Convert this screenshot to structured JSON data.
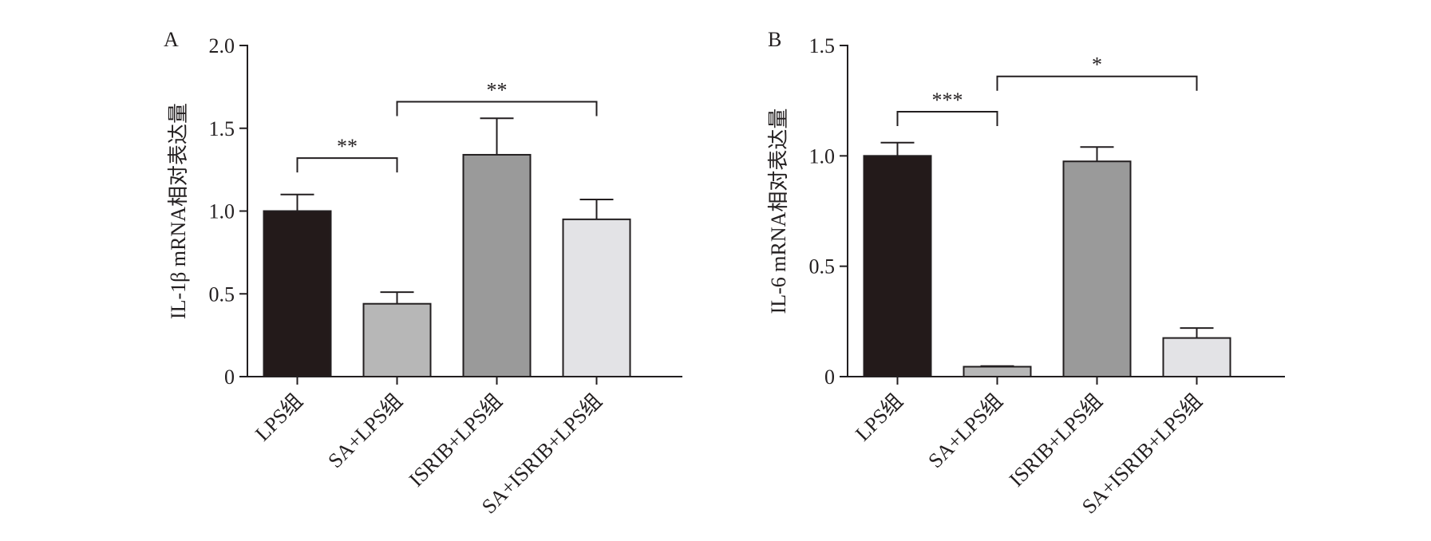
{
  "chart_data": [
    {
      "type": "bar",
      "panel_label": "A",
      "categories": [
        "LPS组",
        "SA+LPS组",
        "ISRIB+LPS组",
        "SA+ISRIB+LPS组"
      ],
      "values": [
        1.0,
        0.44,
        1.34,
        0.95
      ],
      "errors": [
        0.1,
        0.07,
        0.22,
        0.12
      ],
      "colors": [
        "#231a1a",
        "#b7b7b7",
        "#9a9a9a",
        "#e3e3e6"
      ],
      "ylabel": "IL-1β mRNA相对表达量",
      "xlabel": "",
      "ylim": [
        0,
        2.0
      ],
      "yticks": [
        0,
        0.5,
        1.0,
        1.5,
        2.0
      ],
      "ytick_labels": [
        "0",
        "0.5",
        "1.0",
        "1.5",
        "2.0"
      ],
      "significance": [
        {
          "from": 0,
          "to": 1,
          "label": "**",
          "y": 1.32
        },
        {
          "from": 1,
          "to": 3,
          "label": "**",
          "y": 1.66
        }
      ],
      "grid": false
    },
    {
      "type": "bar",
      "panel_label": "B",
      "categories": [
        "LPS组",
        "SA+LPS组",
        "ISRIB+LPS组",
        "SA+ISRIB+LPS组"
      ],
      "values": [
        1.0,
        0.045,
        0.975,
        0.175
      ],
      "errors": [
        0.06,
        0.003,
        0.065,
        0.045
      ],
      "colors": [
        "#231a1a",
        "#b7b7b7",
        "#9a9a9a",
        "#e3e3e6"
      ],
      "ylabel": "IL-6 mRNA相对表达量",
      "xlabel": "",
      "ylim": [
        0,
        1.5
      ],
      "yticks": [
        0,
        0.5,
        1.0,
        1.5
      ],
      "ytick_labels": [
        "0",
        "0.5",
        "1.0",
        "1.5"
      ],
      "significance": [
        {
          "from": 0,
          "to": 1,
          "label": "***",
          "y": 1.2
        },
        {
          "from": 1,
          "to": 3,
          "label": "*",
          "y": 1.36
        }
      ],
      "grid": false
    }
  ]
}
